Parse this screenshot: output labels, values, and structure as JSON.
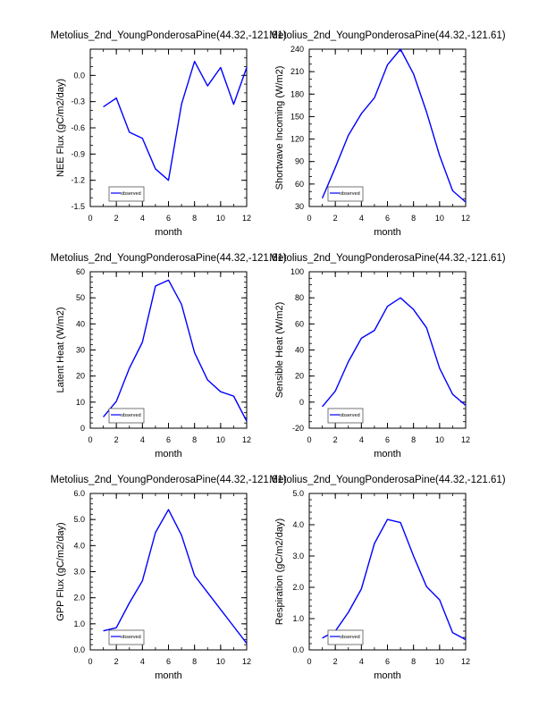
{
  "colors": {
    "series": "#0000ff",
    "axis": "#000000",
    "legend_border": "#555555"
  },
  "chart_data": [
    {
      "type": "line",
      "title": "Metolius_2nd_YoungPonderosaPine(44.32,-121.61)",
      "xlabel": "month",
      "ylabel": "NEE Flux (gC/m2/day)",
      "xlim": [
        0,
        12
      ],
      "ylim": [
        -1.5,
        0.3
      ],
      "xticks": [
        0,
        2,
        4,
        6,
        8,
        10,
        12
      ],
      "xtick_labels": [
        "0",
        "2",
        "4",
        "6",
        "8",
        "10",
        "12"
      ],
      "x_minor_step": 1,
      "yticks": [
        -1.5,
        -1.2,
        -0.9,
        -0.6,
        -0.3,
        0.0
      ],
      "ytick_labels": [
        "-1.5",
        "-1.2",
        "-0.9",
        "-0.6",
        "-0.3",
        "0.0"
      ],
      "y_minor_step": 0.1,
      "legend": {
        "label": "observed",
        "placement": "bottom-left"
      },
      "series": [
        {
          "name": "observed",
          "x": [
            1,
            2,
            3,
            4,
            5,
            6,
            7,
            8,
            9,
            10,
            11,
            12
          ],
          "values": [
            -0.36,
            -0.26,
            -0.65,
            -0.72,
            -1.07,
            -1.2,
            -0.33,
            0.16,
            -0.12,
            0.09,
            -0.33,
            0.09
          ]
        }
      ]
    },
    {
      "type": "line",
      "title": "Metolius_2nd_YoungPonderosaPine(44.32,-121.61)",
      "xlabel": "month",
      "ylabel": "Shortwave Incoming (W/m2)",
      "xlim": [
        0,
        12
      ],
      "ylim": [
        30,
        240
      ],
      "xticks": [
        0,
        2,
        4,
        6,
        8,
        10,
        12
      ],
      "xtick_labels": [
        "0",
        "2",
        "4",
        "6",
        "8",
        "10",
        "12"
      ],
      "x_minor_step": 1,
      "yticks": [
        30,
        60,
        90,
        120,
        150,
        180,
        210,
        240
      ],
      "ytick_labels": [
        "30",
        "60",
        "90",
        "120",
        "150",
        "180",
        "210",
        "240"
      ],
      "y_minor_step": 10,
      "legend": {
        "label": "observed",
        "placement": "bottom-left"
      },
      "series": [
        {
          "name": "observed",
          "x": [
            1,
            2,
            3,
            4,
            5,
            6,
            7,
            8,
            9,
            10,
            11,
            12
          ],
          "values": [
            41,
            82,
            125,
            154,
            175,
            219,
            240,
            207,
            156,
            98,
            51,
            36
          ]
        }
      ]
    },
    {
      "type": "line",
      "title": "Metolius_2nd_YoungPonderosaPine(44.32,-121.61)",
      "xlabel": "month",
      "ylabel": "Latent Heat (W/m2)",
      "xlim": [
        0,
        12
      ],
      "ylim": [
        0,
        60
      ],
      "xticks": [
        0,
        2,
        4,
        6,
        8,
        10,
        12
      ],
      "xtick_labels": [
        "0",
        "2",
        "4",
        "6",
        "8",
        "10",
        "12"
      ],
      "x_minor_step": 1,
      "yticks": [
        0,
        10,
        20,
        30,
        40,
        50,
        60
      ],
      "ytick_labels": [
        "0",
        "10",
        "20",
        "30",
        "40",
        "50",
        "60"
      ],
      "y_minor_step": 2,
      "legend": {
        "label": "observed",
        "placement": "bottom-left"
      },
      "series": [
        {
          "name": "observed",
          "x": [
            1,
            2,
            3,
            4,
            5,
            6,
            7,
            8,
            9,
            10,
            11,
            12
          ],
          "values": [
            4.3,
            10.3,
            23,
            33,
            54.5,
            56.8,
            47.5,
            29,
            18.5,
            14,
            12.3,
            2.7
          ]
        }
      ]
    },
    {
      "type": "line",
      "title": "Metolius_2nd_YoungPonderosaPine(44.32,-121.61)",
      "xlabel": "month",
      "ylabel": "Sensible Heat (W/m2)",
      "xlim": [
        0,
        12
      ],
      "ylim": [
        -20,
        100
      ],
      "xticks": [
        0,
        2,
        4,
        6,
        8,
        10,
        12
      ],
      "xtick_labels": [
        "0",
        "2",
        "4",
        "6",
        "8",
        "10",
        "12"
      ],
      "x_minor_step": 1,
      "yticks": [
        -20,
        0,
        20,
        40,
        60,
        80,
        100
      ],
      "ytick_labels": [
        "-20",
        "0",
        "20",
        "40",
        "60",
        "80",
        "100"
      ],
      "y_minor_step": 5,
      "legend": {
        "label": "observed",
        "placement": "bottom-left"
      },
      "series": [
        {
          "name": "observed",
          "x": [
            1,
            2,
            3,
            4,
            5,
            6,
            7,
            8,
            9,
            10,
            11,
            12
          ],
          "values": [
            -3.5,
            8.5,
            31,
            49,
            55,
            73.5,
            80,
            71,
            57,
            26,
            6,
            -2.5
          ]
        }
      ]
    },
    {
      "type": "line",
      "title": "Metolius_2nd_YoungPonderosaPine(44.32,-121.61)",
      "xlabel": "month",
      "ylabel": "GPP Flux (gC/m2/day)",
      "xlim": [
        0,
        12
      ],
      "ylim": [
        0,
        6
      ],
      "xticks": [
        0,
        2,
        4,
        6,
        8,
        10,
        12
      ],
      "xtick_labels": [
        "0",
        "2",
        "4",
        "6",
        "8",
        "10",
        "12"
      ],
      "x_minor_step": 1,
      "yticks": [
        0,
        1,
        2,
        3,
        4,
        5,
        6
      ],
      "ytick_labels": [
        "0.0",
        "1.0",
        "2.0",
        "3.0",
        "4.0",
        "5.0",
        "6.0"
      ],
      "y_minor_step": 0.2,
      "legend": {
        "label": "observed",
        "placement": "bottom-left"
      },
      "series": [
        {
          "name": "observed",
          "x": [
            1,
            2,
            3,
            4,
            5,
            6,
            7,
            8,
            9,
            10,
            11,
            12
          ],
          "values": [
            0.73,
            0.85,
            1.8,
            2.65,
            4.5,
            5.38,
            4.4,
            2.85,
            2.2,
            1.55,
            0.9,
            0.25
          ]
        }
      ]
    },
    {
      "type": "line",
      "title": "Metolius_2nd_YoungPonderosaPine(44.32,-121.61)",
      "xlabel": "month",
      "ylabel": "Respiration (gC/m2/day)",
      "xlim": [
        0,
        12
      ],
      "ylim": [
        0,
        5
      ],
      "xticks": [
        0,
        2,
        4,
        6,
        8,
        10,
        12
      ],
      "xtick_labels": [
        "0",
        "2",
        "4",
        "6",
        "8",
        "10",
        "12"
      ],
      "x_minor_step": 1,
      "yticks": [
        0,
        1,
        2,
        3,
        4,
        5
      ],
      "ytick_labels": [
        "0.0",
        "1.0",
        "2.0",
        "3.0",
        "4.0",
        "5.0"
      ],
      "y_minor_step": 0.2,
      "legend": {
        "label": "observed",
        "placement": "bottom-left"
      },
      "series": [
        {
          "name": "observed",
          "x": [
            1,
            2,
            3,
            4,
            5,
            6,
            7,
            8,
            9,
            10,
            11,
            12
          ],
          "values": [
            0.38,
            0.6,
            1.2,
            1.95,
            3.4,
            4.17,
            4.07,
            3.0,
            2.02,
            1.6,
            0.55,
            0.33
          ]
        }
      ]
    }
  ]
}
